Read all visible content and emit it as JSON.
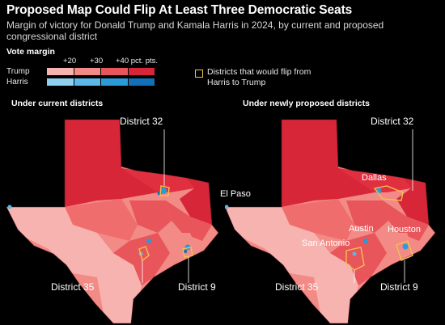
{
  "title": "Proposed Map Could Flip At Least Three Democratic Seats",
  "subtitle": "Margin of victory for Donald Trump and Kamala Harris in 2024, by current and proposed congressional district",
  "legend": {
    "title": "Vote margin",
    "ticks": [
      "+20",
      "+30",
      "+40 pct. pts."
    ],
    "trump_label": "Trump",
    "harris_label": "Harris",
    "trump_colors": [
      "#f7b3b0",
      "#f28a86",
      "#e8555a",
      "#d62638"
    ],
    "harris_colors": [
      "#8fd0f0",
      "#5bb8e8",
      "#2a9bd8",
      "#1270b8"
    ],
    "flip_label": "Districts that would flip from Harris to Trump",
    "flip_color": "#f2c14e"
  },
  "panels": {
    "current": {
      "title": "Under current districts",
      "labels": {
        "d32": "District 32",
        "d35": "District 35",
        "d9": "District 9"
      }
    },
    "proposed": {
      "title": "Under newly proposed districts",
      "labels": {
        "d32": "District 32",
        "d35": "District 35",
        "d9": "District 9",
        "el_paso": "El Paso",
        "dallas": "Dallas",
        "austin": "Austin",
        "houston": "Houston",
        "san_antonio": "San Antonio"
      }
    }
  }
}
